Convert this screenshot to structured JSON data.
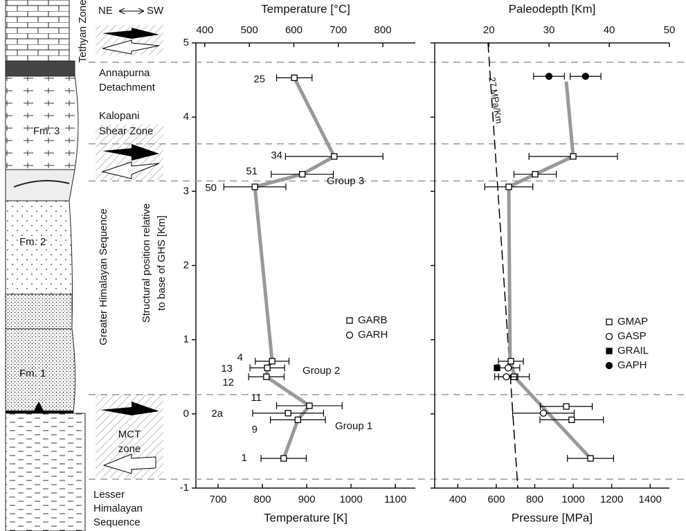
{
  "column": {
    "tethyan": "Tethyan Zone",
    "ne": "NE",
    "sw": "SW",
    "annapurna": [
      "Annapurna",
      "Detachment"
    ],
    "kalopani": [
      "Kalopani",
      "Shear Zone"
    ],
    "mct": [
      "MCT",
      "zone"
    ],
    "lesser": [
      "Lesser",
      "Himalayan",
      "Sequence"
    ],
    "greater": "Greater Himalayan Sequence",
    "fm3": "Fm. 3",
    "fm2": "Fm. 2",
    "fm1": "Fm. 1"
  },
  "chart_data": [
    {
      "type": "scatter",
      "xlabel": "Temperature [K]",
      "x2label": "Temperature [°C]",
      "ylabel": [
        "Structural position relative",
        "to base of GHS [Km]"
      ],
      "xlim": [
        650,
        1145
      ],
      "xticks": [
        700,
        800,
        900,
        1000,
        1100
      ],
      "x2lim": [
        380,
        873
      ],
      "x2ticks": [
        400,
        500,
        600,
        700,
        800
      ],
      "ylim": [
        -1,
        5
      ],
      "yticks": [
        -1,
        0,
        1,
        2,
        3,
        4,
        5
      ],
      "boundaries": [
        4.74,
        3.64,
        3.14,
        0.26,
        -0.88
      ],
      "annotations": [
        "Group 1",
        "Group 2",
        "Group 3"
      ],
      "trend": {
        "color": "#999999",
        "x": [
          848,
          880,
          906,
          809,
          811,
          822,
          783,
          890,
          962,
          872
        ],
        "values": [
          -0.6,
          -0.08,
          0.11,
          0.5,
          0.62,
          0.71,
          3.06,
          3.23,
          3.47,
          4.53
        ]
      },
      "series": [
        {
          "name": "GARB",
          "marker": "open-square",
          "labels": [
            "25",
            "34",
            "51",
            "50",
            "4",
            "13",
            "12",
            "11",
            "2a",
            "9",
            "1"
          ],
          "x": [
            872,
            962,
            890,
            783,
            822,
            811,
            809,
            906,
            858,
            880,
            848
          ],
          "values": [
            4.53,
            3.47,
            3.23,
            3.06,
            0.71,
            0.62,
            0.5,
            0.11,
            0.01,
            -0.08,
            -0.6
          ],
          "xerr": [
            40,
            110,
            70,
            70,
            38,
            39,
            40,
            74,
            80,
            62,
            51
          ]
        },
        {
          "name": "GARH",
          "marker": "open-circle",
          "x": [],
          "values": [],
          "xerr": []
        }
      ]
    },
    {
      "type": "scatter",
      "xlabel": "Pressure [MPa]",
      "x2label": "Paleodepth [Km]",
      "xlim": [
        280,
        1500
      ],
      "xticks": [
        400,
        600,
        800,
        1000,
        1200,
        1400
      ],
      "x2lim": [
        11,
        50
      ],
      "x2ticks": [
        20,
        30,
        40,
        50
      ],
      "ylim": [
        -1,
        5
      ],
      "yticks": [
        -1,
        0,
        1,
        2,
        3,
        4,
        5
      ],
      "gradient": {
        "label": "27 MPa/Km",
        "x": [
          557,
          712
        ],
        "values": [
          5,
          -1
        ]
      },
      "trend": {
        "color": "#999999",
        "x": [
          1090,
          701,
          672,
          665,
          802,
          1000,
          964
        ],
        "values": [
          -0.6,
          0.48,
          0.71,
          3.06,
          3.23,
          3.47,
          4.48
        ]
      },
      "series": [
        {
          "name": "GMAP",
          "marker": "open-square",
          "x": [
            1000,
            802,
            665,
            676,
            692,
            964,
            992,
            1090
          ],
          "values": [
            3.47,
            3.23,
            3.06,
            0.71,
            0.5,
            0.1,
            -0.08,
            -0.6
          ],
          "xerr": [
            230,
            110,
            125,
            65,
            80,
            135,
            165,
            120
          ]
        },
        {
          "name": "GASP",
          "marker": "open-circle",
          "x": [
            662,
            652,
            845
          ],
          "values": [
            0.62,
            0.5,
            0.01
          ],
          "xerr": [
            60,
            60,
            160
          ]
        },
        {
          "name": "GRAIL",
          "marker": "filled-square",
          "x": [
            604
          ],
          "values": [
            0.62
          ],
          "xerr": [
            0
          ]
        },
        {
          "name": "GAPH",
          "marker": "filled-circle",
          "x": [
            874,
            1064
          ],
          "values": [
            4.55,
            4.55
          ],
          "xerr": [
            80,
            80
          ]
        }
      ]
    }
  ]
}
